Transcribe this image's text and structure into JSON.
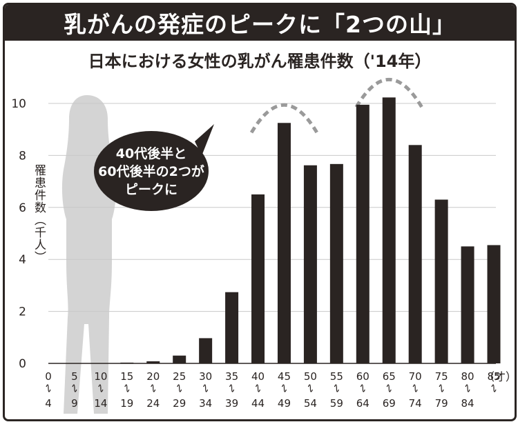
{
  "headline": "乳がんの発症のピークに「2つの山」",
  "subtitle": "日本における女性の乳がん罹患件数（'14年）",
  "callout": [
    "40代後半と",
    "60代後半の2つが",
    "ピークに"
  ],
  "chart_data": {
    "type": "bar",
    "title": "日本における女性の乳がん罹患件数（'14年）",
    "ylabel": "罹患件数（千人）",
    "xlabel_unit": "（才）",
    "ylim": [
      0,
      10.5
    ],
    "yticks": [
      0,
      2,
      4,
      6,
      8,
      10
    ],
    "grid": true,
    "categories": [
      {
        "from": "0",
        "to": "4"
      },
      {
        "from": "5",
        "to": "9"
      },
      {
        "from": "10",
        "to": "14"
      },
      {
        "from": "15",
        "to": "19"
      },
      {
        "from": "20",
        "to": "24"
      },
      {
        "from": "25",
        "to": "29"
      },
      {
        "from": "30",
        "to": "34"
      },
      {
        "from": "35",
        "to": "39"
      },
      {
        "from": "40",
        "to": "44"
      },
      {
        "from": "45",
        "to": "49"
      },
      {
        "from": "50",
        "to": "54"
      },
      {
        "from": "55",
        "to": "59"
      },
      {
        "from": "60",
        "to": "64"
      },
      {
        "from": "65",
        "to": "69"
      },
      {
        "from": "70",
        "to": "74"
      },
      {
        "from": "75",
        "to": "79"
      },
      {
        "from": "80",
        "to": "84"
      },
      {
        "from": "85",
        "to": ""
      }
    ],
    "values": [
      0,
      0,
      0,
      0.03,
      0.08,
      0.3,
      0.97,
      2.74,
      6.5,
      9.25,
      7.62,
      7.67,
      9.95,
      10.23,
      8.4,
      6.3,
      4.5,
      4.55
    ],
    "peaks": [
      9,
      13
    ]
  },
  "colors": {
    "bar": "#2a2422",
    "grid": "#c8c8c8",
    "silhouette": "#d4d4d4",
    "arc": "#9a9a9a"
  }
}
